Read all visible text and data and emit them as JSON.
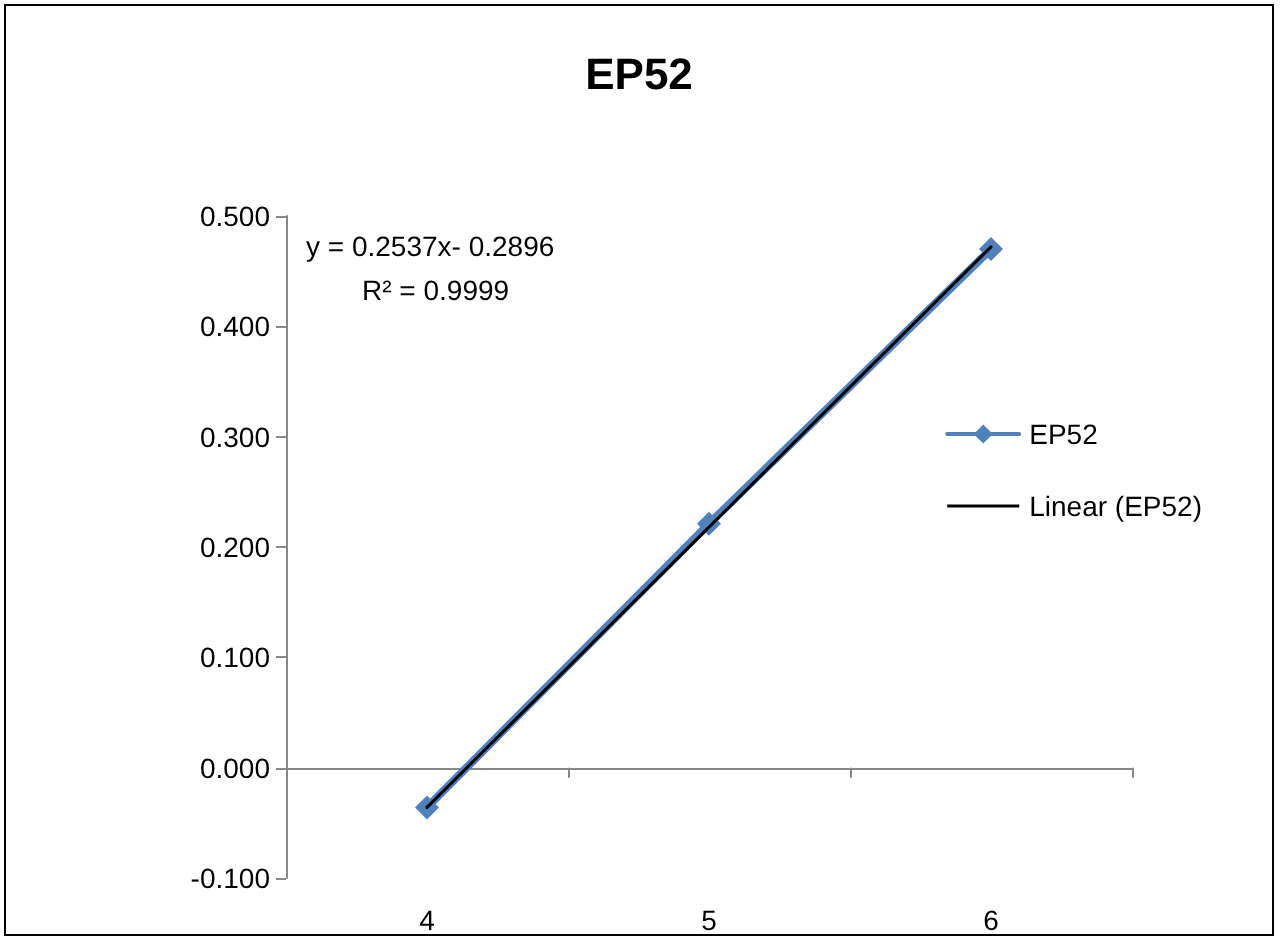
{
  "chart_data": {
    "type": "line",
    "title": "EP52",
    "categories": [
      "4",
      "5",
      "6"
    ],
    "series": [
      {
        "name": "EP52",
        "color": "#4f81bd",
        "values": [
          -0.036,
          0.221,
          0.47
        ],
        "marker": "diamond"
      },
      {
        "name": "Linear (EP52)",
        "color": "#000000",
        "values": [
          -0.036,
          0.218,
          0.472
        ],
        "marker": "none"
      }
    ],
    "ylim": [
      -0.1,
      0.5
    ],
    "yticks": [
      {
        "value": -0.1,
        "label": "-0.100"
      },
      {
        "value": 0,
        "label": "0.000"
      },
      {
        "value": 0.1,
        "label": "0.100"
      },
      {
        "value": 0.2,
        "label": "0.200"
      },
      {
        "value": 0.3,
        "label": "0.300"
      },
      {
        "value": 0.4,
        "label": "0.400"
      },
      {
        "value": 0.5,
        "label": "0.500"
      }
    ],
    "annotations": [
      "y = 0.2537x- 0.2896",
      "R² = 0.9999"
    ],
    "legend": "right"
  }
}
